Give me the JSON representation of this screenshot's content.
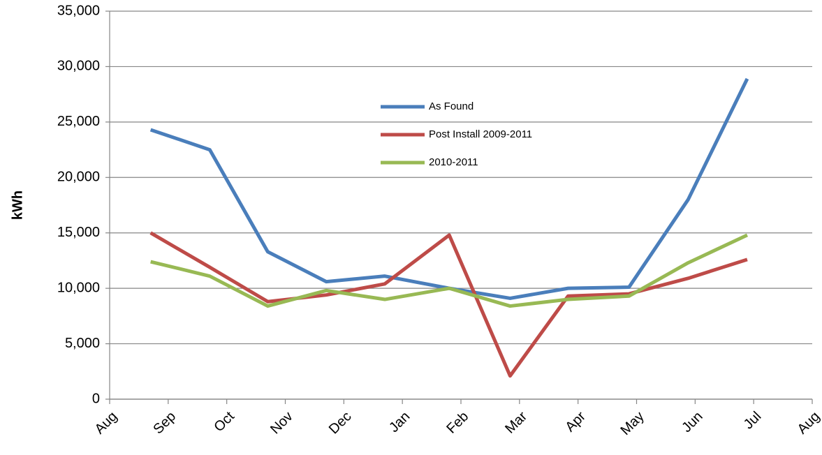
{
  "chart_data": {
    "type": "line",
    "y_label": "kWh",
    "xlim": [
      0,
      12
    ],
    "xticks": [
      {
        "value": 0,
        "label": "Aug"
      },
      {
        "value": 1,
        "label": "Sep"
      },
      {
        "value": 2,
        "label": "Oct"
      },
      {
        "value": 3,
        "label": "Nov"
      },
      {
        "value": 4,
        "label": "Dec"
      },
      {
        "value": 5,
        "label": "Jan"
      },
      {
        "value": 6,
        "label": "Feb"
      },
      {
        "value": 7,
        "label": "Mar"
      },
      {
        "value": 8,
        "label": "Apr"
      },
      {
        "value": 9,
        "label": "May"
      },
      {
        "value": 10,
        "label": "Jun"
      },
      {
        "value": 11,
        "label": "Jul"
      },
      {
        "value": 12,
        "label": "Aug"
      }
    ],
    "x": [
      0.7,
      1.71,
      2.7,
      3.7,
      4.7,
      5.8,
      6.84,
      7.83,
      8.87,
      9.88,
      10.89
    ],
    "ylim": [
      0,
      35000
    ],
    "yticks": [
      0,
      {
        "value": 5000,
        "label": "5,000"
      },
      {
        "value": 10000,
        "label": "10,000"
      },
      {
        "value": 15000,
        "label": "15,000"
      },
      {
        "value": 20000,
        "label": "20,000"
      },
      {
        "value": 25000,
        "label": "25,000"
      },
      {
        "value": 30000,
        "label": "30,000"
      },
      {
        "value": 35000,
        "label": "35,000"
      }
    ],
    "grid": true,
    "legend": "center",
    "series": [
      {
        "name": "As Found",
        "color": "#4a7ebb",
        "values": [
          24300,
          22500,
          13300,
          10600,
          11100,
          10000,
          9100,
          10000,
          10100,
          18000,
          28900
        ]
      },
      {
        "name": "Post Install 2009-2011",
        "color": "#be4b48",
        "values": [
          15000,
          11900,
          8800,
          9400,
          10400,
          14800,
          2100,
          9300,
          9500,
          10900,
          12600
        ]
      },
      {
        "name": "2010-2011",
        "color": "#98b954",
        "values": [
          12400,
          11100,
          8400,
          9800,
          9000,
          10000,
          8400,
          9000,
          9300,
          12300,
          14800
        ]
      }
    ]
  }
}
